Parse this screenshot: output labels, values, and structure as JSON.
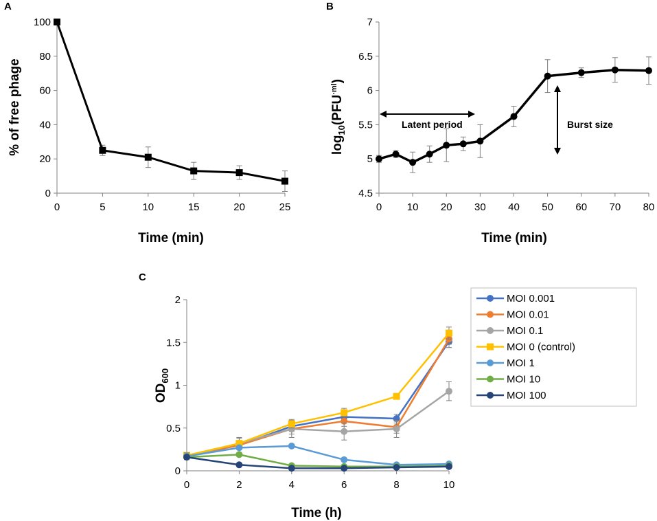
{
  "chart_data": [
    {
      "panel": "A",
      "type": "line",
      "xlabel": "Time (min)",
      "ylabel": "% of free phage",
      "xlim": [
        0,
        25
      ],
      "ylim": [
        0,
        100
      ],
      "xticks": [
        "0",
        "5",
        "10",
        "15",
        "20",
        "25"
      ],
      "yticks": [
        "0",
        "20",
        "40",
        "60",
        "80",
        "100"
      ],
      "color": "#000000",
      "marker": "square",
      "x": [
        0,
        5,
        10,
        15,
        20,
        25
      ],
      "y": [
        100,
        25,
        21,
        13,
        12,
        7
      ],
      "err": [
        0,
        3,
        6,
        5,
        4,
        6
      ]
    },
    {
      "panel": "B",
      "type": "line",
      "xlabel": "Time (min)",
      "ylabel_main": "log",
      "ylabel_sub": "10",
      "ylabel_rest": "(PFU",
      "ylabel_sup": "·ml",
      "ylabel_close": ")",
      "xlim": [
        0,
        80
      ],
      "ylim": [
        4.5,
        7
      ],
      "xticks": [
        "0",
        "10",
        "20",
        "30",
        "40",
        "50",
        "60",
        "70",
        "80"
      ],
      "yticks": [
        "4.5",
        "5",
        "5.5",
        "6",
        "6.5",
        "7"
      ],
      "color": "#000000",
      "marker": "circle",
      "x": [
        0,
        5,
        10,
        15,
        20,
        25,
        30,
        40,
        50,
        60,
        70,
        80
      ],
      "y": [
        5.0,
        5.07,
        4.95,
        5.07,
        5.2,
        5.22,
        5.26,
        5.62,
        6.21,
        6.26,
        6.3,
        6.29
      ],
      "err": [
        0.05,
        0.05,
        0.15,
        0.12,
        0.24,
        0.1,
        0.24,
        0.15,
        0.24,
        0.07,
        0.18,
        0.2
      ],
      "annotations": {
        "latent_period": "Latent period",
        "burst_size": "Burst size"
      }
    },
    {
      "panel": "C",
      "type": "line",
      "xlabel": "Time (h)",
      "ylabel_main": "OD",
      "ylabel_sub": "600",
      "xlim": [
        0,
        10
      ],
      "ylim": [
        0,
        2
      ],
      "xticks": [
        "0",
        "2",
        "4",
        "6",
        "8",
        "10"
      ],
      "yticks": [
        "0",
        "0.5",
        "1",
        "1.5",
        "2"
      ],
      "x": [
        0,
        2,
        4,
        6,
        8,
        10
      ],
      "series": [
        {
          "name": "MOI 0.001",
          "color": "#4472C4",
          "marker": "circle",
          "values": [
            0.17,
            0.3,
            0.52,
            0.63,
            0.61,
            1.51
          ],
          "err": [
            0.03,
            0.05,
            0.06,
            0.05,
            0.05,
            0.07
          ]
        },
        {
          "name": "MOI 0.01",
          "color": "#ED7D31",
          "marker": "circle",
          "values": [
            0.17,
            0.3,
            0.49,
            0.58,
            0.51,
            1.54
          ],
          "err": [
            0.03,
            0.05,
            0.06,
            0.06,
            0.07,
            0.06
          ]
        },
        {
          "name": "MOI 0.1",
          "color": "#A5A5A5",
          "marker": "circle",
          "values": [
            0.17,
            0.32,
            0.49,
            0.46,
            0.49,
            0.93
          ],
          "err": [
            0.03,
            0.07,
            0.1,
            0.1,
            0.1,
            0.11
          ]
        },
        {
          "name": "MOI 0 (control)",
          "color": "#FFC000",
          "marker": "square",
          "values": [
            0.18,
            0.32,
            0.55,
            0.68,
            0.87,
            1.61
          ],
          "err": [
            0.03,
            0.06,
            0.05,
            0.05,
            0.0,
            0.07
          ]
        },
        {
          "name": "MOI 1",
          "color": "#5B9BD5",
          "marker": "circle",
          "values": [
            0.17,
            0.27,
            0.29,
            0.13,
            0.07,
            0.08
          ],
          "err": [
            0.04,
            0.02,
            0.02,
            0.01,
            0.01,
            0.01
          ]
        },
        {
          "name": "MOI 10",
          "color": "#70AD47",
          "marker": "circle",
          "values": [
            0.16,
            0.19,
            0.06,
            0.05,
            0.05,
            0.06
          ],
          "err": [
            0.02,
            0.02,
            0.01,
            0.01,
            0.01,
            0.01
          ]
        },
        {
          "name": "MOI 100",
          "color": "#264478",
          "marker": "circle",
          "values": [
            0.16,
            0.07,
            0.03,
            0.03,
            0.04,
            0.05
          ],
          "err": [
            0.02,
            0.01,
            0.01,
            0.01,
            0.01,
            0.01
          ]
        }
      ]
    }
  ]
}
